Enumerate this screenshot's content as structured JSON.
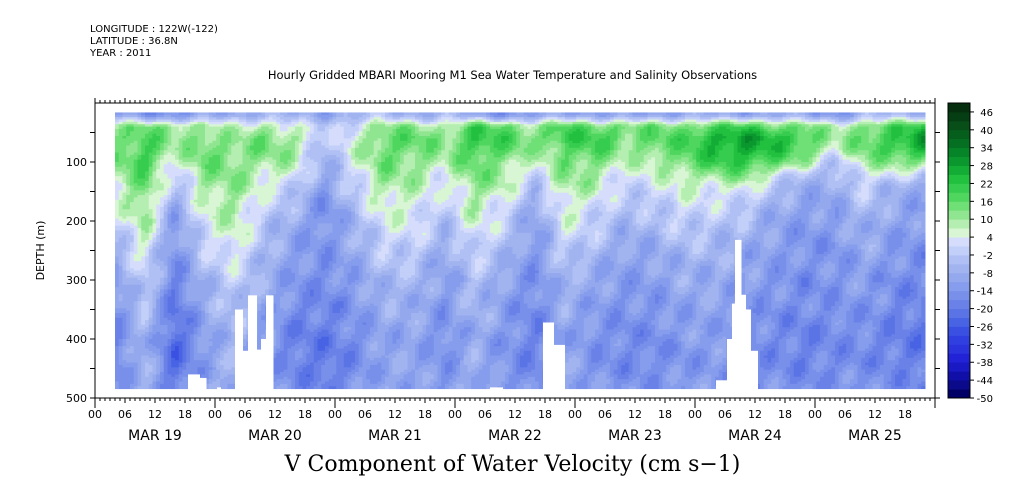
{
  "meta": {
    "longitude": "LONGITUDE : 122W(-122)",
    "latitude": "LATITUDE : 36.8N",
    "year": "YEAR : 2011"
  },
  "title": "Hourly Gridded MBARI Mooring M1 Sea Water Temperature and Salinity Observations",
  "caption": "V Component of Water Velocity (cm s−1)",
  "chart_data": {
    "type": "heatmap",
    "title": "Hourly Gridded MBARI Mooring M1 Sea Water Temperature and Salinity Observations",
    "xlabel": "",
    "ylabel": "DEPTH (m)",
    "variable": "V Component of Water Velocity (cm s−1)",
    "y_axis": {
      "range": [
        0,
        500
      ],
      "inverted": true,
      "ticks": [
        100,
        200,
        300,
        400,
        500
      ]
    },
    "x_axis": {
      "range_hours": [
        0,
        168
      ],
      "hour_ticks": [
        "00",
        "06",
        "12",
        "18",
        "00",
        "06",
        "12",
        "18",
        "00",
        "06",
        "12",
        "18",
        "00",
        "06",
        "12",
        "18",
        "00",
        "06",
        "12",
        "18",
        "00",
        "06",
        "12",
        "18",
        "00",
        "06",
        "12",
        "18"
      ],
      "day_labels": [
        "MAR 19",
        "MAR 20",
        "MAR 21",
        "MAR 22",
        "MAR 23",
        "MAR 24",
        "MAR 25"
      ]
    },
    "data_extent": {
      "start_hour": 4,
      "end_hour": 166,
      "min_depth": 16,
      "max_depth": 484
    },
    "colorbar": {
      "labels": [
        "46",
        "40",
        "34",
        "28",
        "22",
        "16",
        "10",
        "4",
        "-2",
        "-8",
        "-14",
        "-20",
        "-26",
        "-32",
        "-38",
        "-44",
        "-50"
      ],
      "levels": [
        -50,
        -47,
        -44,
        -41,
        -38,
        -35,
        -32,
        -29,
        -26,
        -23,
        -20,
        -17,
        -14,
        -11,
        -8,
        -5,
        -2,
        1,
        4,
        7,
        10,
        13,
        16,
        19,
        22,
        25,
        28,
        31,
        34,
        37,
        40,
        43,
        46,
        49
      ],
      "colors": [
        "#000066",
        "#0a0a8a",
        "#1010a8",
        "#1a1ac4",
        "#2222d6",
        "#2b33dd",
        "#3040e0",
        "#3a50e2",
        "#4863e4",
        "#5a74e6",
        "#6a82e8",
        "#7890ea",
        "#869cec",
        "#94a8ee",
        "#a2b4f0",
        "#b0c0f4",
        "#c2cff8",
        "#d6ddfc",
        "#d8f5d4",
        "#b4eeb0",
        "#90e690",
        "#6ee076",
        "#4fd65f",
        "#36cc4f",
        "#22c03f",
        "#13ad35",
        "#0a982e",
        "#068428",
        "#057022",
        "#065e1d",
        "#074e18",
        "#063e13",
        "#052e0e"
      ]
    },
    "value_notes": "Cell values are estimated from the color field; positive = green, negative = blue.",
    "rows_depth_m": [
      20,
      40,
      60,
      80,
      100,
      120,
      140,
      160,
      180,
      200,
      220,
      240,
      260,
      280,
      300,
      320,
      340,
      360,
      380,
      400,
      420,
      440,
      460,
      480
    ],
    "cols_hour": [
      4,
      10,
      16,
      22,
      28,
      34,
      40,
      46,
      52,
      58,
      64,
      70,
      76,
      82,
      88,
      94,
      100,
      106,
      112,
      118,
      124,
      130,
      136,
      142,
      148,
      154,
      160,
      166
    ],
    "values": [
      [
        -10,
        -14,
        -14,
        -11,
        -8,
        -6,
        -8,
        -10,
        -6,
        -4,
        -8,
        -6,
        -10,
        -14,
        -12,
        -8,
        -10,
        -12,
        -10,
        -8,
        -10,
        -10,
        -8,
        -10,
        -14,
        -6,
        -6,
        -6
      ],
      [
        10,
        14,
        12,
        10,
        6,
        10,
        4,
        -2,
        4,
        12,
        12,
        8,
        18,
        16,
        10,
        18,
        16,
        14,
        14,
        14,
        18,
        20,
        16,
        14,
        8,
        14,
        18,
        22
      ],
      [
        14,
        18,
        10,
        14,
        10,
        14,
        10,
        -4,
        6,
        16,
        16,
        12,
        22,
        18,
        14,
        20,
        20,
        14,
        16,
        18,
        26,
        28,
        24,
        20,
        8,
        16,
        22,
        28
      ],
      [
        12,
        20,
        8,
        16,
        12,
        14,
        10,
        -6,
        6,
        16,
        14,
        10,
        20,
        16,
        10,
        16,
        18,
        10,
        14,
        16,
        24,
        26,
        22,
        16,
        6,
        14,
        20,
        24
      ],
      [
        12,
        20,
        4,
        14,
        12,
        10,
        8,
        -8,
        4,
        14,
        12,
        8,
        16,
        12,
        4,
        14,
        14,
        6,
        10,
        14,
        20,
        22,
        16,
        10,
        -4,
        10,
        12,
        14
      ],
      [
        10,
        16,
        0,
        12,
        12,
        8,
        4,
        -10,
        2,
        12,
        10,
        4,
        14,
        10,
        0,
        12,
        10,
        2,
        6,
        10,
        12,
        14,
        6,
        -4,
        -6,
        4,
        4,
        -4
      ],
      [
        6,
        16,
        -4,
        10,
        12,
        4,
        0,
        -12,
        0,
        10,
        8,
        2,
        12,
        8,
        -4,
        10,
        8,
        0,
        2,
        6,
        6,
        6,
        -2,
        -8,
        -8,
        0,
        -6,
        -8
      ],
      [
        4,
        14,
        -8,
        8,
        10,
        2,
        -4,
        -14,
        -2,
        8,
        6,
        0,
        10,
        4,
        -8,
        8,
        4,
        -2,
        0,
        4,
        2,
        2,
        -6,
        -10,
        -10,
        -2,
        -8,
        -10
      ],
      [
        2,
        12,
        -10,
        6,
        10,
        0,
        -6,
        -16,
        -4,
        6,
        4,
        -2,
        8,
        2,
        -10,
        6,
        2,
        -4,
        -2,
        2,
        0,
        -2,
        -8,
        -12,
        -10,
        -4,
        -10,
        -12
      ],
      [
        0,
        10,
        -12,
        4,
        8,
        -2,
        -8,
        -16,
        -6,
        4,
        4,
        -4,
        6,
        0,
        -12,
        4,
        0,
        -6,
        -4,
        0,
        -2,
        -4,
        -10,
        -12,
        -12,
        -6,
        -10,
        -12
      ],
      [
        -4,
        8,
        -14,
        2,
        8,
        -4,
        -10,
        -14,
        -8,
        2,
        2,
        -6,
        4,
        -2,
        -12,
        2,
        -2,
        -8,
        -6,
        -2,
        -4,
        -6,
        -10,
        -14,
        -12,
        -8,
        -12,
        -14
      ],
      [
        -6,
        6,
        -14,
        0,
        6,
        -4,
        -12,
        -14,
        -8,
        0,
        0,
        -8,
        2,
        -4,
        -14,
        0,
        -4,
        -10,
        -8,
        -4,
        -6,
        -8,
        -12,
        -14,
        -14,
        -8,
        -12,
        -14
      ],
      [
        -8,
        4,
        -16,
        -2,
        4,
        -6,
        -12,
        -14,
        -10,
        -2,
        -2,
        -10,
        0,
        -6,
        -14,
        -2,
        -6,
        -10,
        -10,
        -6,
        -6,
        -10,
        -12,
        -14,
        -14,
        -10,
        -14,
        -16
      ],
      [
        -10,
        2,
        -16,
        -4,
        2,
        -6,
        -12,
        -16,
        -10,
        -4,
        -4,
        -10,
        -2,
        -8,
        -14,
        -4,
        -8,
        -12,
        -10,
        -8,
        -8,
        -10,
        -12,
        -14,
        -14,
        -10,
        -14,
        -16
      ],
      [
        -12,
        0,
        -18,
        -6,
        0,
        -8,
        -14,
        -16,
        -12,
        -6,
        -6,
        -12,
        -4,
        -10,
        -16,
        -6,
        -10,
        -12,
        -12,
        -8,
        -8,
        -12,
        -14,
        -16,
        -14,
        -12,
        -16,
        -16
      ],
      [
        -14,
        -2,
        -20,
        -8,
        -2,
        -8,
        -14,
        -16,
        -12,
        -6,
        -6,
        -12,
        -4,
        -10,
        -16,
        -6,
        -10,
        -14,
        -12,
        -10,
        -10,
        -12,
        -14,
        -16,
        -14,
        -12,
        -16,
        -18
      ],
      [
        -14,
        -2,
        -20,
        -8,
        -2,
        -10,
        -16,
        -18,
        -14,
        -8,
        -8,
        -14,
        -6,
        -12,
        -16,
        -8,
        -12,
        -14,
        -14,
        -10,
        -10,
        -12,
        -14,
        -16,
        -14,
        -14,
        -16,
        -18
      ],
      [
        -16,
        -4,
        -22,
        -10,
        -4,
        -10,
        -16,
        -18,
        -14,
        -8,
        -8,
        -14,
        -6,
        -12,
        -18,
        -8,
        -12,
        -14,
        -14,
        -12,
        -10,
        -14,
        -16,
        -16,
        -16,
        -14,
        -18,
        -18
      ],
      [
        -16,
        -4,
        -22,
        -10,
        -4,
        -12,
        -18,
        -18,
        -14,
        -10,
        -10,
        -14,
        -8,
        -12,
        -18,
        -10,
        -14,
        -16,
        -14,
        -12,
        -12,
        -14,
        -16,
        -18,
        -16,
        -14,
        -18,
        -20
      ],
      [
        -18,
        -6,
        -24,
        -12,
        -6,
        -12,
        -18,
        -20,
        -16,
        -10,
        -10,
        -16,
        -8,
        -14,
        -18,
        -10,
        -14,
        -16,
        -16,
        -12,
        -12,
        -14,
        -16,
        -18,
        -16,
        -16,
        -18,
        -20
      ],
      [
        -18,
        -6,
        -24,
        -12,
        -6,
        -12,
        -18,
        -20,
        -16,
        -10,
        -10,
        -16,
        -8,
        -14,
        -18,
        -10,
        -14,
        -16,
        -16,
        -14,
        -12,
        -16,
        -16,
        -18,
        -16,
        -16,
        -18,
        -20
      ],
      [
        -18,
        -6,
        -22,
        -12,
        -6,
        -12,
        -18,
        -20,
        -16,
        -10,
        -10,
        -14,
        -8,
        -14,
        -18,
        -10,
        -14,
        -16,
        -16,
        -14,
        -12,
        -16,
        -16,
        -18,
        -16,
        -16,
        -18,
        -20
      ],
      [
        -18,
        -6,
        -22,
        -12,
        -6,
        -12,
        -18,
        -20,
        -16,
        -10,
        -10,
        -14,
        -8,
        -14,
        -18,
        -10,
        -14,
        -16,
        -14,
        -14,
        -12,
        -14,
        -16,
        -16,
        -16,
        -14,
        -16,
        -18
      ],
      [
        -16,
        -6,
        -20,
        -10,
        -6,
        -12,
        -16,
        -18,
        -14,
        -10,
        -10,
        -14,
        -8,
        -12,
        -16,
        -10,
        -12,
        -14,
        -14,
        -12,
        -12,
        -14,
        -14,
        -16,
        -14,
        -14,
        -16,
        -18
      ]
    ],
    "gaps": [
      {
        "h0": 18.6,
        "h1": 21,
        "d0": 460,
        "d1": 500
      },
      {
        "h0": 21,
        "h1": 22.3,
        "d0": 466,
        "d1": 500
      },
      {
        "h0": 24.4,
        "h1": 25.2,
        "d0": 482,
        "d1": 500
      },
      {
        "h0": 28,
        "h1": 29.6,
        "d0": 350,
        "d1": 500
      },
      {
        "h0": 29.6,
        "h1": 30.6,
        "d0": 420,
        "d1": 500
      },
      {
        "h0": 30.6,
        "h1": 32.4,
        "d0": 326,
        "d1": 500
      },
      {
        "h0": 32.4,
        "h1": 33.2,
        "d0": 418,
        "d1": 500
      },
      {
        "h0": 33.2,
        "h1": 34.2,
        "d0": 400,
        "d1": 500
      },
      {
        "h0": 34.2,
        "h1": 35.7,
        "d0": 326,
        "d1": 500
      },
      {
        "h0": 79,
        "h1": 81.6,
        "d0": 482,
        "d1": 500
      },
      {
        "h0": 89.6,
        "h1": 91.8,
        "d0": 372,
        "d1": 500
      },
      {
        "h0": 91.8,
        "h1": 94,
        "d0": 410,
        "d1": 500
      },
      {
        "h0": 124.2,
        "h1": 126.4,
        "d0": 470,
        "d1": 500
      },
      {
        "h0": 126.4,
        "h1": 127.4,
        "d0": 400,
        "d1": 500
      },
      {
        "h0": 127.4,
        "h1": 128,
        "d0": 340,
        "d1": 500
      },
      {
        "h0": 128,
        "h1": 129.3,
        "d0": 232,
        "d1": 500
      },
      {
        "h0": 129.3,
        "h1": 130.2,
        "d0": 325,
        "d1": 500
      },
      {
        "h0": 130.2,
        "h1": 131.2,
        "d0": 350,
        "d1": 500
      },
      {
        "h0": 131.2,
        "h1": 132.6,
        "d0": 420,
        "d1": 500
      }
    ]
  }
}
